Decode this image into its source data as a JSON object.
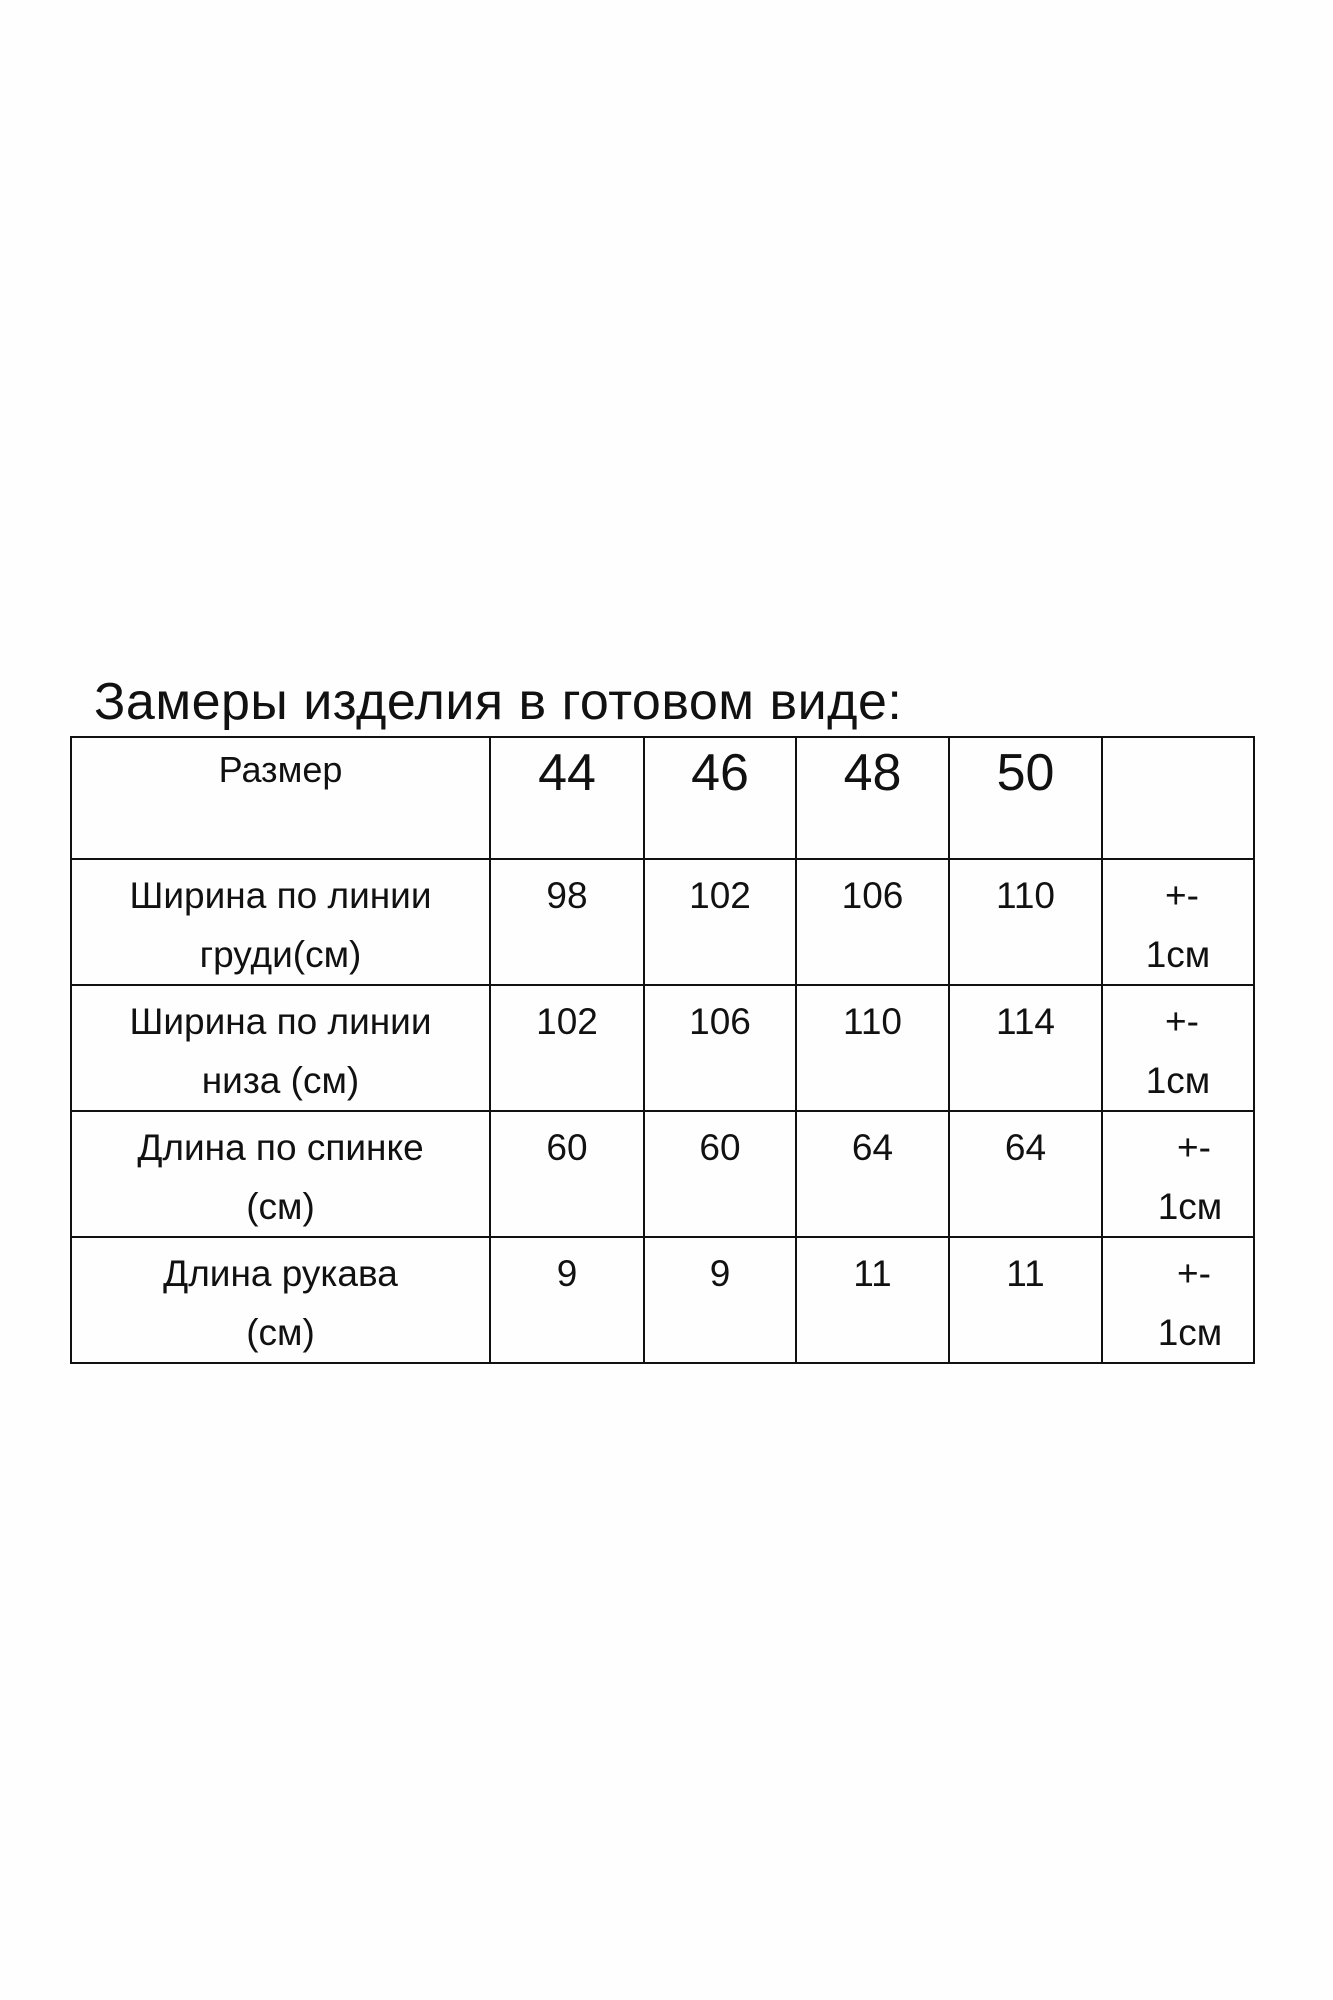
{
  "title": "Замеры изделия в готовом виде:",
  "table": {
    "header": {
      "label": "Размер",
      "sizes": [
        "44",
        "46",
        "48",
        "50"
      ],
      "extra": ""
    },
    "rows": [
      {
        "label_line1": "Ширина по линии",
        "label_line2": "груди(см)",
        "values": [
          "98",
          "102",
          "106",
          "110"
        ],
        "tol_line1": "+-",
        "tol_line2": "1см"
      },
      {
        "label_line1": "Ширина по линии",
        "label_line2": "низа (см)",
        "values": [
          "102",
          "106",
          "110",
          "114"
        ],
        "tol_line1": "+-",
        "tol_line2": "1см"
      },
      {
        "label_line1": "Длина по спинке",
        "label_line2": "(см)",
        "values": [
          "60",
          "60",
          "64",
          "64"
        ],
        "tol_line1": "+-",
        "tol_line2": "1см"
      },
      {
        "label_line1": "Длина рукава",
        "label_line2": "(см)",
        "values": [
          "9",
          "9",
          "11",
          "11"
        ],
        "tol_line1": "+-",
        "tol_line2": "1см"
      }
    ]
  }
}
